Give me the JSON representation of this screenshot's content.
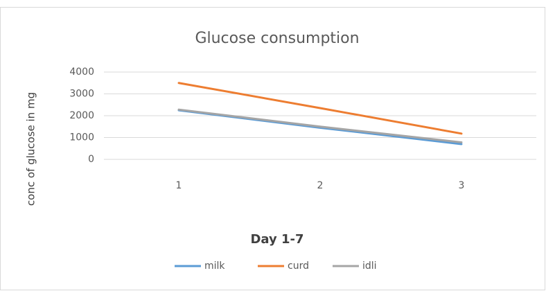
{
  "chart_data": {
    "type": "line",
    "title": "Glucose consumption",
    "x_label": "Day 1-7",
    "y_label": "conc of glucose in mg",
    "categories": [
      "1",
      "2",
      "3"
    ],
    "series": [
      {
        "name": "milk",
        "color": "#5b9bd5",
        "values": [
          2250,
          1450,
          700
        ]
      },
      {
        "name": "curd",
        "color": "#ed7d31",
        "values": [
          3500,
          2350,
          1180
        ]
      },
      {
        "name": "idli",
        "color": "#a5a5a5",
        "values": [
          2280,
          1500,
          780
        ]
      }
    ],
    "ylim": [
      0,
      4000
    ],
    "yticks": [
      0,
      1000,
      2000,
      3000,
      4000
    ],
    "grid": true,
    "legend": "bottom"
  }
}
